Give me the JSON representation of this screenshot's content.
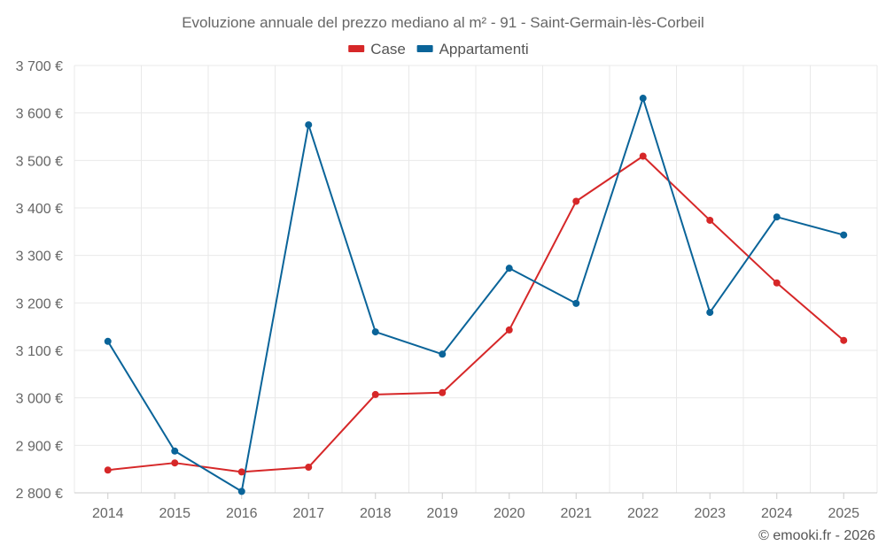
{
  "chart_data": {
    "type": "line",
    "title": "Evoluzione annuale del prezzo mediano al m² - 91 - Saint-Germain-lès-Corbeil",
    "categories": [
      "2014",
      "2015",
      "2016",
      "2017",
      "2018",
      "2019",
      "2020",
      "2021",
      "2022",
      "2023",
      "2024",
      "2025"
    ],
    "series": [
      {
        "name": "Case",
        "color": "#d62728",
        "values": [
          2848,
          2863,
          2844,
          2854,
          3007,
          3011,
          3143,
          3414,
          3509,
          3374,
          3242,
          3121
        ]
      },
      {
        "name": "Appartamenti",
        "color": "#0a6499",
        "values": [
          3119,
          2888,
          2803,
          3575,
          3139,
          3092,
          3273,
          3199,
          3631,
          3180,
          3381,
          3343
        ]
      }
    ],
    "ylim": [
      2800,
      3700
    ],
    "yticks": [
      2800,
      2900,
      3000,
      3100,
      3200,
      3300,
      3400,
      3500,
      3600,
      3700
    ],
    "ytick_labels": [
      "2 800 €",
      "2 900 €",
      "3 000 €",
      "3 100 €",
      "3 200 €",
      "3 300 €",
      "3 400 €",
      "3 500 €",
      "3 600 €",
      "3 700 €"
    ],
    "xlabel": "",
    "ylabel": "",
    "grid": true,
    "legend_position": "top-center"
  },
  "credit": "© emooki.fr - 2026"
}
